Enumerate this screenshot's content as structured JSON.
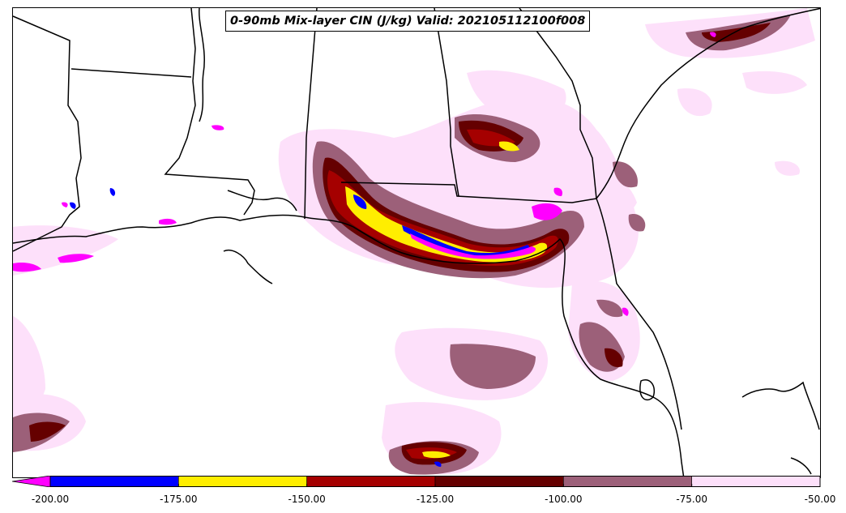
{
  "title": "0-90mb Mix-layer CIN (J/kg) Valid: 202105112100f008",
  "colorbar": {
    "ticks": [
      "-200.00",
      "-175.00",
      "-150.00",
      "-125.00",
      "-100.00",
      "-75.00",
      "-50.00"
    ],
    "levels": [
      {
        "min": -200,
        "max": -175,
        "color": "#0000ff"
      },
      {
        "min": -175,
        "max": -150,
        "color": "#ffee00"
      },
      {
        "min": -150,
        "max": -125,
        "color": "#a50000"
      },
      {
        "min": -125,
        "max": -100,
        "color": "#650000"
      },
      {
        "min": -100,
        "max": -75,
        "color": "#9c6079"
      },
      {
        "min": -75,
        "max": -50,
        "color": "#fde0fa"
      }
    ],
    "under_color": "#ff00ff"
  },
  "colors": {
    "coast": "#000000",
    "background": "#ffffff"
  }
}
